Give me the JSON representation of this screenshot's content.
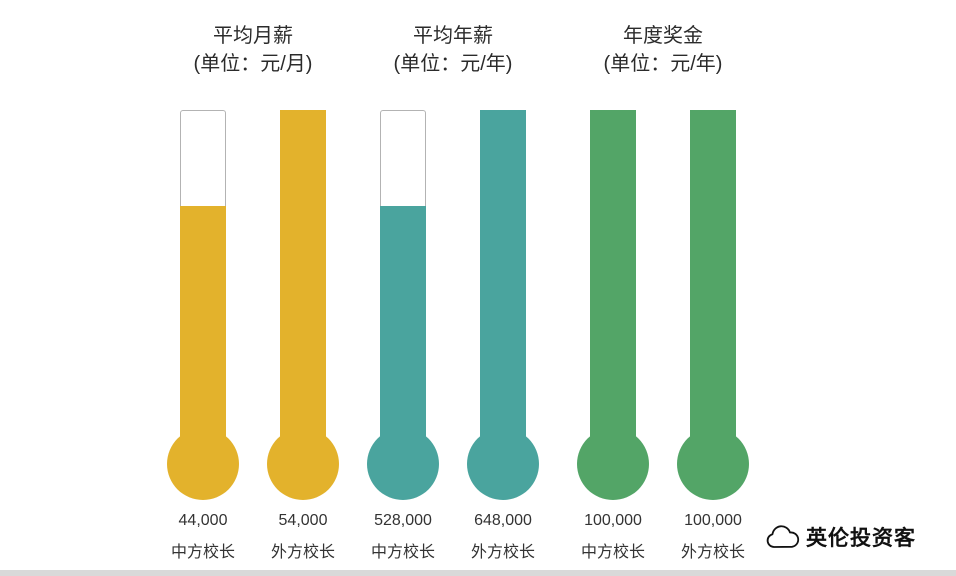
{
  "page": {
    "background": "#ffffff"
  },
  "watermark": {
    "text": "英伦投资客",
    "icon": "cloud-icon"
  },
  "chart_data": {
    "type": "bar",
    "subtype": "thermometer",
    "title": "",
    "legend": "none",
    "grid": false,
    "groups": [
      {
        "title": "平均月薪",
        "unit": "(单位：元/月)",
        "color": "#E3B22C",
        "bars": [
          {
            "label": "中方校长",
            "value": 44000,
            "display": "44,000",
            "fill_percent": 72
          },
          {
            "label": "外方校长",
            "value": 54000,
            "display": "54,000",
            "fill_percent": 100
          }
        ]
      },
      {
        "title": "平均年薪",
        "unit": "(单位：元/年)",
        "color": "#4AA49E",
        "bars": [
          {
            "label": "中方校长",
            "value": 528000,
            "display": "528,000",
            "fill_percent": 72
          },
          {
            "label": "外方校长",
            "value": 648000,
            "display": "648,000",
            "fill_percent": 100
          }
        ]
      },
      {
        "title": "年度奖金",
        "unit": "(单位：元/年)",
        "color": "#53A567",
        "bars": [
          {
            "label": "中方校长",
            "value": 100000,
            "display": "100,000",
            "fill_percent": 100
          },
          {
            "label": "外方校长",
            "value": 100000,
            "display": "100,000",
            "fill_percent": 100
          }
        ]
      }
    ]
  }
}
